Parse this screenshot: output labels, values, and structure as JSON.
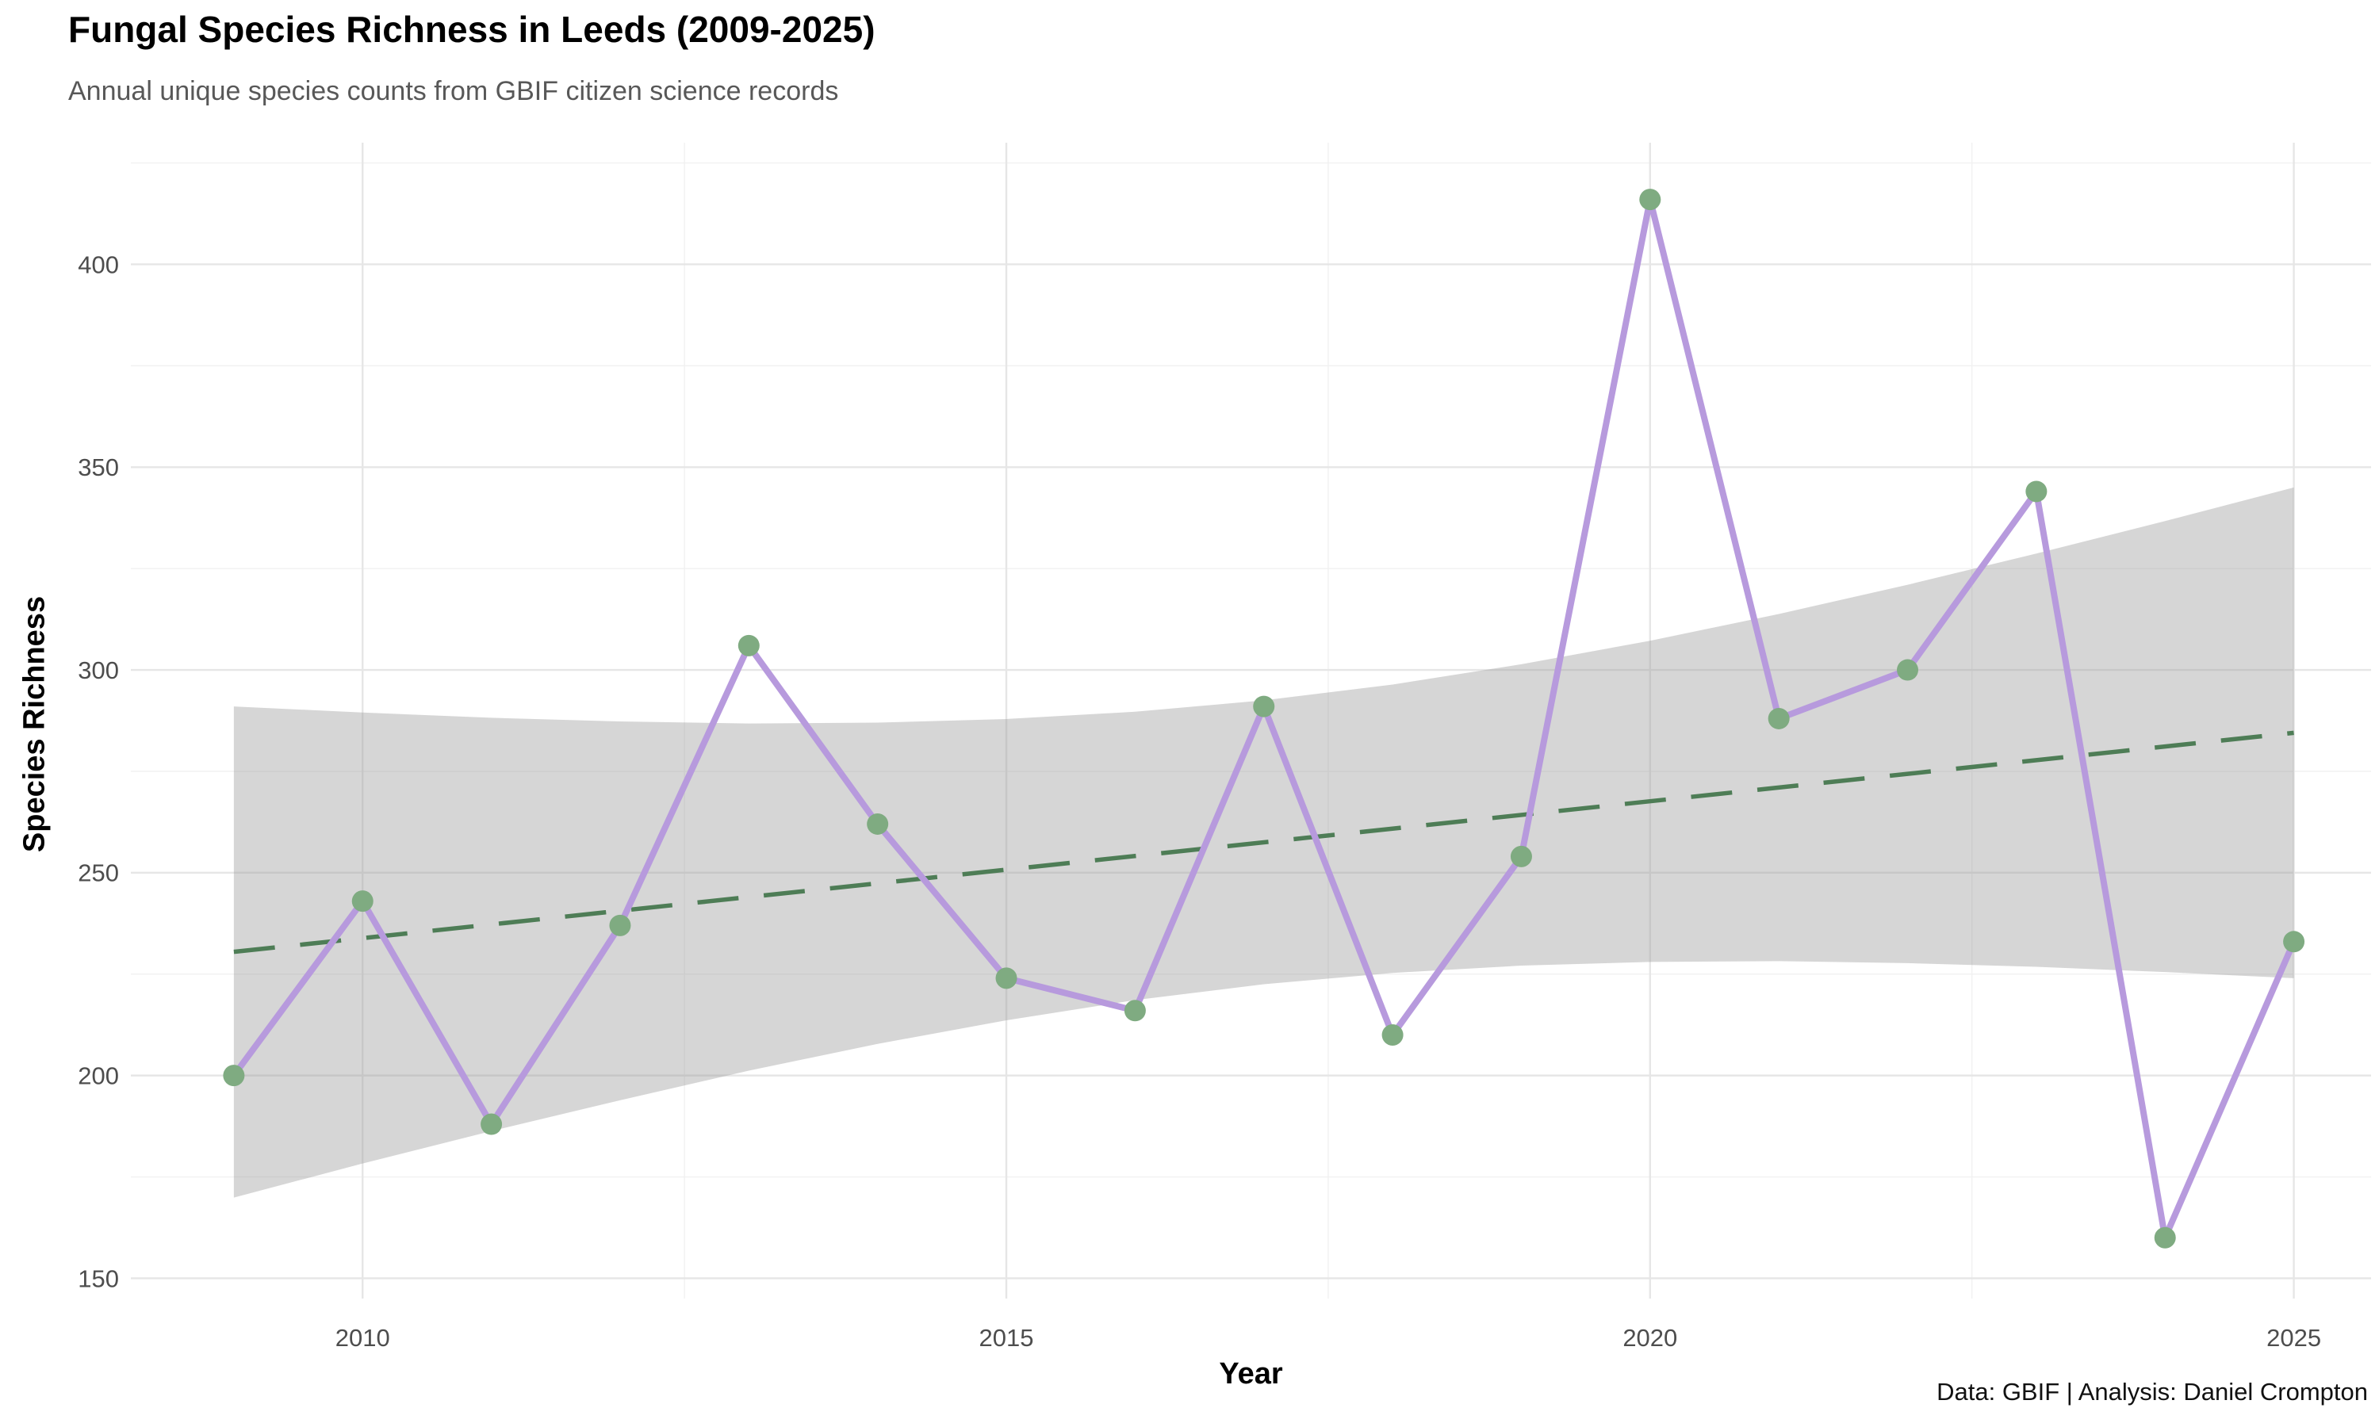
{
  "header": {
    "title": "Fungal Species Richness in Leeds (2009-2025)",
    "subtitle": "Annual unique species counts from GBIF citizen science records"
  },
  "caption": "Data: GBIF | Analysis: Daniel Crompton",
  "colors": {
    "series_line": "#b79add",
    "point_fill": "#7fab81",
    "trend_line": "#4e7d56",
    "ci_band_fill": "#999999",
    "ci_band_opacity": 0.4,
    "grid_major": "#e6e6e6",
    "grid_minor": "#f1f1f1",
    "tick_label": "#4d4d4d",
    "background": "#ffffff"
  },
  "chart_data": {
    "type": "line",
    "title": "Fungal Species Richness in Leeds (2009-2025)",
    "subtitle": "Annual unique species counts from GBIF citizen science records",
    "caption": "Data: GBIF | Analysis: Daniel Crompton",
    "xlabel": "Year",
    "ylabel": "Species Richness",
    "x": [
      2009,
      2010,
      2011,
      2012,
      2013,
      2014,
      2015,
      2016,
      2017,
      2018,
      2019,
      2020,
      2021,
      2022,
      2023,
      2024,
      2025
    ],
    "series": [
      {
        "name": "observed_richness",
        "values": [
          200,
          243,
          188,
          237,
          306,
          262,
          224,
          216,
          291,
          210,
          254,
          416,
          288,
          300,
          344,
          160,
          233
        ]
      },
      {
        "name": "linear_trend",
        "values": [
          230.5,
          233.9,
          237.2,
          240.6,
          244.0,
          247.4,
          250.8,
          254.1,
          257.5,
          260.9,
          264.2,
          267.6,
          271.0,
          274.4,
          277.8,
          281.1,
          284.5
        ]
      }
    ],
    "ci_band": {
      "lower": [
        169.9,
        178.3,
        186.3,
        193.9,
        201.2,
        207.8,
        213.6,
        218.6,
        222.5,
        225.3,
        227.1,
        228.0,
        228.2,
        227.7,
        226.8,
        225.5,
        224.0
      ],
      "upper": [
        291.0,
        289.5,
        288.2,
        287.3,
        286.8,
        287.0,
        287.9,
        289.7,
        292.5,
        296.4,
        301.4,
        307.2,
        313.8,
        321.0,
        328.7,
        336.7,
        345.0
      ]
    },
    "x_ticks": [
      2010,
      2015,
      2020,
      2025
    ],
    "x_tick_labels": [
      "2010",
      "2015",
      "2020",
      "2025"
    ],
    "x_minor_ticks": [
      2012.5,
      2017.5,
      2022.5
    ],
    "y_ticks": [
      150,
      200,
      250,
      300,
      350,
      400
    ],
    "y_tick_labels": [
      "150",
      "200",
      "250",
      "300",
      "350",
      "400"
    ],
    "y_minor_ticks": [
      175,
      225,
      275,
      325,
      375,
      425
    ],
    "xlim": [
      2008.2,
      2025.6
    ],
    "ylim": [
      145,
      430
    ],
    "grid": true,
    "legend": false,
    "trend_style": "dashed"
  }
}
